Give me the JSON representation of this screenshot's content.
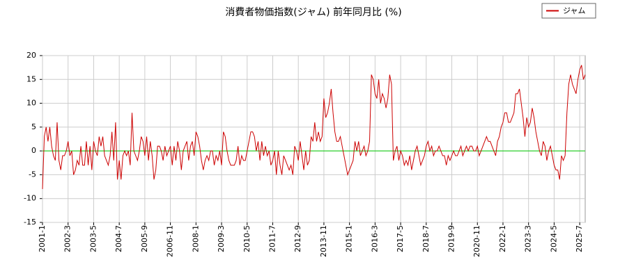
{
  "chart_data": {
    "type": "line",
    "title": "消費者物価指数(ジャム) 前年同月比 (%)",
    "categories": [
      "2001-1",
      null,
      null,
      null,
      null,
      null,
      null,
      null,
      null,
      null,
      null,
      null,
      null,
      null,
      "2002-3",
      null,
      null,
      null,
      null,
      null,
      null,
      null,
      null,
      null,
      null,
      null,
      null,
      null,
      "2003-5",
      null,
      null,
      null,
      null,
      null,
      null,
      null,
      null,
      null,
      null,
      null,
      null,
      null,
      "2004-7",
      null,
      null,
      null,
      null,
      null,
      null,
      null,
      null,
      null,
      null,
      null,
      null,
      null,
      "2005-9",
      null,
      null,
      null,
      null,
      null,
      null,
      null,
      null,
      null,
      null,
      null,
      null,
      null,
      "2006-11",
      null,
      null,
      null,
      null,
      null,
      null,
      null,
      null,
      null,
      null,
      null,
      null,
      null,
      "2008-1",
      null,
      null,
      null,
      null,
      null,
      null,
      null,
      null,
      null,
      null,
      null,
      null,
      null,
      "2009-3",
      null,
      null,
      null,
      null,
      null,
      null,
      null,
      null,
      null,
      null,
      null,
      null,
      null,
      "2010-5",
      null,
      null,
      null,
      null,
      null,
      null,
      null,
      null,
      null,
      null,
      null,
      null,
      null,
      "2011-7",
      null,
      null,
      null,
      null,
      null,
      null,
      null,
      null,
      null,
      null,
      null,
      null,
      null,
      "2012-9",
      null,
      null,
      null,
      null,
      null,
      null,
      null,
      null,
      null,
      null,
      null,
      null,
      null,
      "2013-11",
      null,
      null,
      null,
      null,
      null,
      null,
      null,
      null,
      null,
      null,
      null,
      null,
      null,
      "2015-1",
      null,
      null,
      null,
      null,
      null,
      null,
      null,
      null,
      null,
      null,
      null,
      null,
      null,
      "2016-3",
      null,
      null,
      null,
      null,
      null,
      null,
      null,
      null,
      null,
      null,
      null,
      null,
      null,
      "2017-5",
      null,
      null,
      null,
      null,
      null,
      null,
      null,
      null,
      null,
      null,
      null,
      null,
      null,
      "2018-7",
      null,
      null,
      null,
      null,
      null,
      null,
      null,
      null,
      null,
      null,
      null,
      null,
      null,
      "2019-9",
      null,
      null,
      null,
      null,
      null,
      null,
      null,
      null,
      null,
      null,
      null,
      null,
      null,
      "2020-11",
      null,
      null,
      null,
      null,
      null,
      null,
      null,
      null,
      null,
      null,
      null,
      null,
      null,
      "2022-1",
      null,
      null,
      null,
      null,
      null,
      null,
      null,
      null,
      null,
      null,
      null,
      null,
      null,
      "2023-3",
      null,
      null,
      null,
      null,
      null,
      null,
      null,
      null,
      null,
      null,
      null,
      null,
      null,
      "2024-5",
      null,
      null,
      null,
      null,
      null,
      null,
      null,
      null,
      null,
      null,
      null,
      null,
      null,
      "2025-7",
      null,
      null,
      null
    ],
    "series": [
      {
        "name": "ジャム",
        "color": "#cc0000",
        "values": [
          -8,
          3,
          5,
          2,
          5,
          1,
          -1,
          -2,
          6,
          -2,
          -4,
          -1,
          -1,
          0,
          2,
          -1,
          0,
          -5,
          -4,
          -2,
          -3,
          1,
          -3,
          -3,
          2,
          -3,
          1,
          -4,
          2,
          0,
          -1,
          3,
          1,
          3,
          -1,
          -2,
          -3,
          -1,
          4,
          -2,
          6,
          -6,
          -2,
          -6,
          -1,
          0,
          -1,
          0,
          -3,
          8,
          0,
          -1,
          -2,
          0,
          3,
          2,
          -1,
          3,
          -2,
          2,
          -1,
          -6,
          -4,
          1,
          1,
          0,
          -2,
          1,
          -1,
          0,
          1,
          -3,
          1,
          -2,
          2,
          0,
          -4,
          0,
          1,
          2,
          -2,
          1,
          2,
          -1,
          4,
          3,
          1,
          -2,
          -4,
          -2,
          -1,
          -2,
          0,
          0,
          -3,
          -1,
          -2,
          0,
          -3,
          4,
          3,
          0,
          -2,
          -3,
          -3,
          -3,
          -2,
          1,
          -3,
          -1,
          -2,
          -2,
          0,
          2,
          4,
          4,
          3,
          0,
          2,
          -2,
          2,
          -1,
          1,
          -1,
          0,
          -3,
          -2,
          0,
          -5,
          0,
          -3,
          -5,
          -1,
          -2,
          -3,
          -4,
          -3,
          -5,
          1,
          0,
          -2,
          2,
          -1,
          -4,
          0,
          -3,
          -2,
          3,
          2,
          6,
          2,
          4,
          2,
          3,
          11,
          7,
          8,
          10,
          13,
          8,
          4,
          2,
          2,
          3,
          1,
          -1,
          -3,
          -5,
          -4,
          -3,
          -2,
          2,
          0,
          2,
          -1,
          0,
          1,
          -1,
          0,
          2,
          16,
          15,
          12,
          11,
          15,
          10,
          12,
          11,
          9,
          11,
          16,
          14,
          -2,
          0,
          1,
          -2,
          0,
          -1,
          -3,
          -2,
          -3,
          -1,
          -4,
          -2,
          0,
          1,
          -1,
          -3,
          -2,
          -1,
          1,
          2,
          0,
          1,
          -1,
          0,
          0,
          1,
          0,
          -1,
          -1,
          -3,
          -1,
          -2,
          -1,
          0,
          -1,
          -1,
          0,
          1,
          -1,
          0,
          1,
          0,
          1,
          1,
          0,
          0,
          1,
          -1,
          0,
          1,
          2,
          3,
          2,
          2,
          1,
          0,
          -1,
          2,
          3,
          5,
          6,
          8,
          8,
          6,
          6,
          7,
          8,
          12,
          12,
          13,
          10,
          7,
          3,
          7,
          5,
          6,
          9,
          7,
          4,
          2,
          0,
          -1,
          2,
          1,
          -2,
          0,
          1,
          -1,
          -3,
          -4,
          -4,
          -6,
          -1,
          -2,
          -1,
          8,
          14,
          16,
          14,
          13,
          12,
          15,
          17,
          18,
          15,
          16
        ]
      }
    ],
    "ylim": [
      -15,
      20
    ],
    "yticks": [
      -15,
      -10,
      -5,
      0,
      5,
      10,
      15,
      20
    ],
    "reference_line": 0,
    "reference_color": "#00cc00",
    "grid": true,
    "legend": "top-right"
  }
}
